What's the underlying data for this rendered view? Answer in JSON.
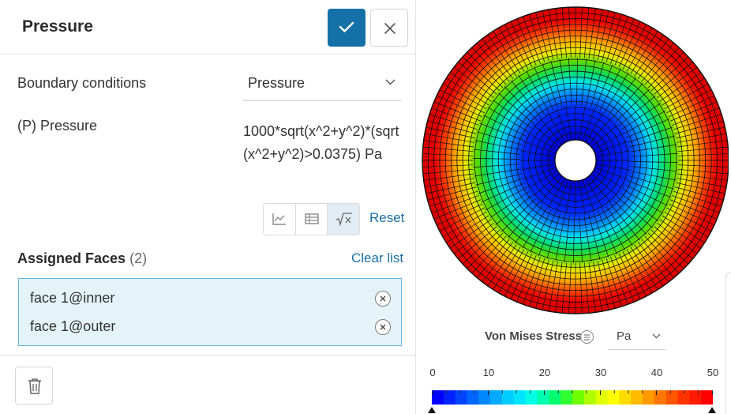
{
  "panel": {
    "title": "Pressure",
    "boundary_conditions": {
      "label": "Boundary conditions",
      "value": "Pressure"
    },
    "pressure": {
      "label": "(P) Pressure",
      "expression": "1000*sqrt(x^2+y^2)*(sqrt(x^2+y^2)>0.0375) Pa"
    },
    "input_modes": [
      "graph-icon",
      "table-icon",
      "formula-icon"
    ],
    "reset_label": "Reset",
    "assigned": {
      "title": "Assigned Faces",
      "count": "(2)",
      "clear_label": "Clear list",
      "faces": [
        "face 1@inner",
        "face 1@outer"
      ]
    }
  },
  "viewer": {
    "legend": {
      "title": "Von Mises Stress",
      "unit": "Pa",
      "ticks": [
        "0",
        "10",
        "20",
        "30",
        "40",
        "50"
      ],
      "min": 0,
      "max": 50,
      "colors": [
        "#0000ff",
        "#0022ff",
        "#0044ff",
        "#0066ff",
        "#0088ff",
        "#00aaff",
        "#00ccff",
        "#00e5ff",
        "#00ffe6",
        "#00ffb0",
        "#00ff70",
        "#30ff30",
        "#70ff00",
        "#b0ff00",
        "#e0ff00",
        "#ffff00",
        "#ffdd00",
        "#ffbb00",
        "#ff9900",
        "#ff7700",
        "#ff5500",
        "#ff3300",
        "#ff1a00",
        "#ff0000"
      ]
    }
  },
  "colors": {
    "accent": "#1670a8",
    "link": "#1a6fa8",
    "selection_bg": "#e4f3f8",
    "selection_border": "#5fb9d6"
  }
}
